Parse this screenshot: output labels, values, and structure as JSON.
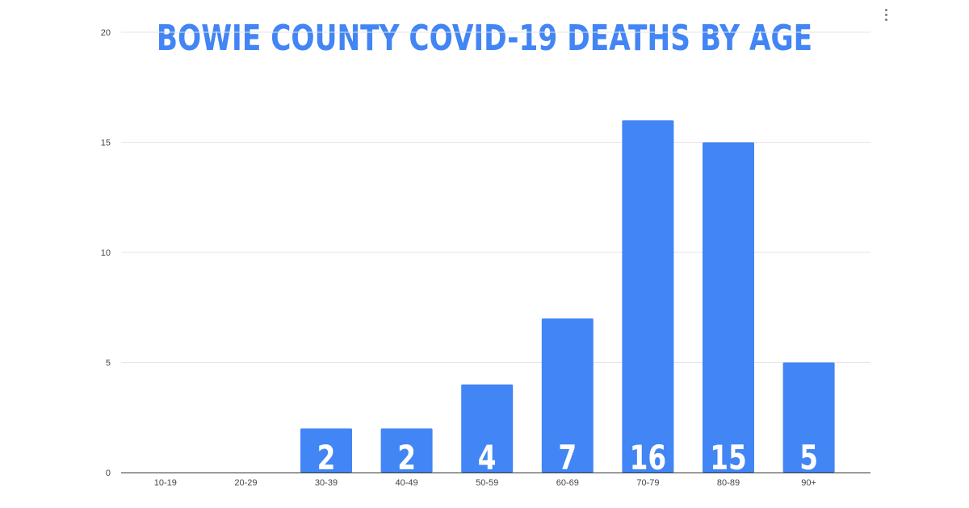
{
  "chart_data": {
    "type": "bar",
    "title": "BOWIE COUNTY COVID-19 DEATHS BY AGE",
    "categories": [
      "10-19",
      "20-29",
      "30-39",
      "40-49",
      "50-59",
      "60-69",
      "70-79",
      "80-89",
      "90+"
    ],
    "values": [
      0,
      0,
      2,
      2,
      4,
      7,
      16,
      15,
      5
    ],
    "data_labels": [
      "",
      "",
      "2",
      "2",
      "4",
      "7",
      "16",
      "15",
      "5"
    ],
    "ylim": [
      0,
      20
    ],
    "yticks": [
      "0",
      "5",
      "10",
      "15",
      "20"
    ],
    "grid": true,
    "xlabel": "",
    "ylabel": ""
  },
  "colors": {
    "bar": "#4285f4",
    "title": "#4285f4",
    "grid": "#e6e6e6",
    "axis": "#333333"
  },
  "icons": {
    "menu": "vertical-ellipsis-icon"
  }
}
